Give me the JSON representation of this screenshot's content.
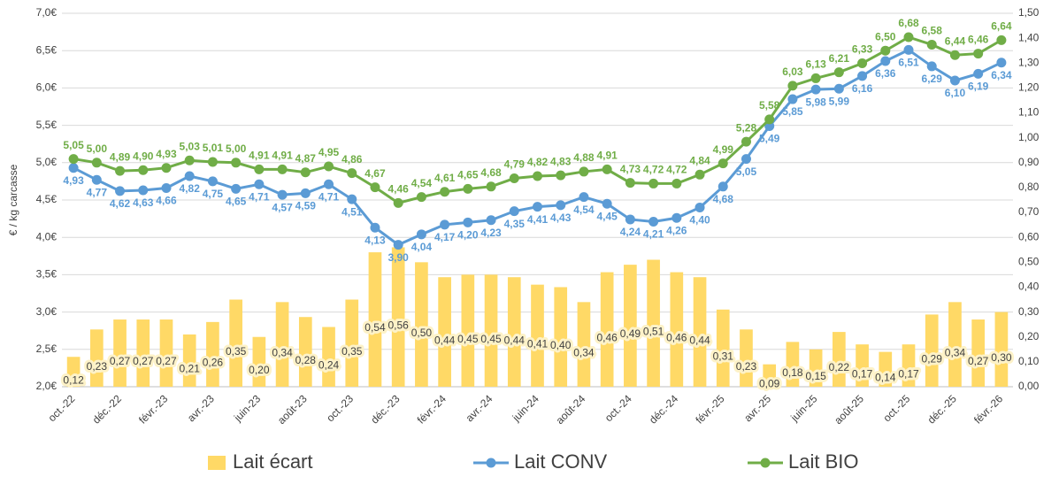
{
  "chart_data": {
    "type": "bar",
    "y_label": "€ / kg carcasse",
    "categories": [
      "oct.-22",
      null,
      "déc.-22",
      null,
      "févr.-23",
      null,
      "avr.-23",
      null,
      "juin-23",
      null,
      "août-23",
      null,
      "oct.-23",
      null,
      "déc.-23",
      null,
      "févr.-24",
      null,
      "avr.-24",
      null,
      "juin-24",
      null,
      "août-24",
      null,
      "oct.-24",
      null,
      "déc.-24",
      null,
      "févr.-25",
      null,
      "avr.-25",
      null,
      "juin-25",
      null,
      "août-25",
      null,
      "oct.-25",
      null,
      "déc.-25",
      null,
      "févr.-26"
    ],
    "series": [
      {
        "name": "Lait écart",
        "type": "bar",
        "axis": "y2",
        "color": "#ffd966",
        "values": [
          0.12,
          0.23,
          0.27,
          0.27,
          0.27,
          0.21,
          0.26,
          0.35,
          0.2,
          0.34,
          0.28,
          0.24,
          0.35,
          0.54,
          0.56,
          0.5,
          0.44,
          0.45,
          0.45,
          0.44,
          0.41,
          0.4,
          0.34,
          0.46,
          0.49,
          0.51,
          0.46,
          0.44,
          0.31,
          0.23,
          0.09,
          0.18,
          0.15,
          0.22,
          0.17,
          0.14,
          0.17,
          0.29,
          0.34,
          0.27,
          0.3
        ],
        "value_labels": [
          "0,12",
          "0,23",
          "0,27",
          "0,27",
          "0,27",
          "0,21",
          "0,26",
          "0,35",
          "0,20",
          "0,34",
          "0,28",
          "0,24",
          "0,35",
          "0,54",
          "0,56",
          "0,50",
          "0,44",
          "0,45",
          "0,45",
          "0,44",
          "0,41",
          "0,40",
          "0,34",
          "0,46",
          "0,49",
          "0,51",
          "0,46",
          "0,44",
          "0,31",
          "0,23",
          "0,09",
          "0,18",
          "0,15",
          "0,22",
          "0,17",
          "0,14",
          "0,17",
          "0,29",
          "0,34",
          "0,27",
          "0,30"
        ]
      },
      {
        "name": "Lait CONV",
        "type": "line",
        "color": "#5b9bd5",
        "values": [
          4.93,
          4.77,
          4.62,
          4.63,
          4.66,
          4.82,
          4.75,
          4.65,
          4.71,
          4.57,
          4.59,
          4.71,
          4.51,
          4.13,
          3.9,
          4.04,
          4.17,
          4.2,
          4.23,
          4.35,
          4.41,
          4.43,
          4.54,
          4.45,
          4.24,
          4.21,
          4.26,
          4.4,
          4.68,
          5.05,
          5.49,
          5.85,
          5.98,
          5.99,
          6.16,
          6.36,
          6.51,
          6.29,
          6.1,
          6.19,
          6.34
        ],
        "value_labels": [
          "4,93",
          "4,77",
          "4,62",
          "4,63",
          "4,66",
          "4,82",
          "4,75",
          "4,65",
          "4,71",
          "4,57",
          "4,59",
          "4,71",
          "4,51",
          "4,13",
          "3,90",
          "4,04",
          "4,17",
          "4,20",
          "4,23",
          "4,35",
          "4,41",
          "4,43",
          "4,54",
          "4,45",
          "4,24",
          "4,21",
          "4,26",
          "4,40",
          "4,68",
          "5,05",
          "5,49",
          "5,85",
          "5,98",
          "5,99",
          "6,16",
          "6,36",
          "6,51",
          "6,29",
          "6,10",
          "6,19",
          "6,34"
        ]
      },
      {
        "name": "Lait BIO",
        "type": "line",
        "color": "#70ad47",
        "values": [
          5.05,
          5.0,
          4.89,
          4.9,
          4.93,
          5.03,
          5.01,
          5.0,
          4.91,
          4.91,
          4.87,
          4.95,
          4.86,
          4.67,
          4.46,
          4.54,
          4.61,
          4.65,
          4.68,
          4.79,
          4.82,
          4.83,
          4.88,
          4.91,
          4.73,
          4.72,
          4.72,
          4.84,
          4.99,
          5.28,
          5.58,
          6.03,
          6.13,
          6.21,
          6.33,
          6.5,
          6.68,
          6.58,
          6.44,
          6.46,
          6.64
        ],
        "value_labels": [
          "5,05",
          "5,00",
          "4,89",
          "4,90",
          "4,93",
          "5,03",
          "5,01",
          "5,00",
          "4,91",
          "4,91",
          "4,87",
          "4,95",
          "4,86",
          "4,67",
          "4,46",
          "4,54",
          "4,61",
          "4,65",
          "4,68",
          "4,79",
          "4,82",
          "4,83",
          "4,88",
          "4,91",
          "4,73",
          "4,72",
          "4,72",
          "4,84",
          "4,99",
          "5,28",
          "5,58",
          "6,03",
          "6,13",
          "6,21",
          "6,33",
          "6,50",
          "6,68",
          "6,58",
          "6,44",
          "6,46",
          "6,64"
        ]
      }
    ],
    "ylim": [
      2,
      7
    ],
    "yticks": [
      {
        "value": 2,
        "label": "2,0€"
      },
      {
        "value": 2.5,
        "label": "2,5€"
      },
      {
        "value": 3,
        "label": "3,0€"
      },
      {
        "value": 3.5,
        "label": "3,5€"
      },
      {
        "value": 4,
        "label": "4,0€"
      },
      {
        "value": 4.5,
        "label": "4,5€"
      },
      {
        "value": 5,
        "label": "5,0€"
      },
      {
        "value": 5.5,
        "label": "5,5€"
      },
      {
        "value": 6,
        "label": "6,0€"
      },
      {
        "value": 6.5,
        "label": "6,5€"
      },
      {
        "value": 7,
        "label": "7,0€"
      }
    ],
    "y2lim": [
      0,
      1.5
    ],
    "y2ticks": [
      {
        "value": 0,
        "label": "0,00"
      },
      {
        "value": 0.1,
        "label": "0,10"
      },
      {
        "value": 0.2,
        "label": "0,20"
      },
      {
        "value": 0.3,
        "label": "0,30"
      },
      {
        "value": 0.4,
        "label": "0,40"
      },
      {
        "value": 0.5,
        "label": "0,50"
      },
      {
        "value": 0.6,
        "label": "0,60"
      },
      {
        "value": 0.7,
        "label": "0,70"
      },
      {
        "value": 0.8,
        "label": "0,80"
      },
      {
        "value": 0.9,
        "label": "0,90"
      },
      {
        "value": 1,
        "label": "1,00"
      },
      {
        "value": 1.1,
        "label": "1,10"
      },
      {
        "value": 1.2,
        "label": "1,20"
      },
      {
        "value": 1.3,
        "label": "1,30"
      },
      {
        "value": 1.4,
        "label": "1,40"
      },
      {
        "value": 1.5,
        "label": "1,50"
      }
    ],
    "grid": true,
    "legend": "bottom"
  }
}
